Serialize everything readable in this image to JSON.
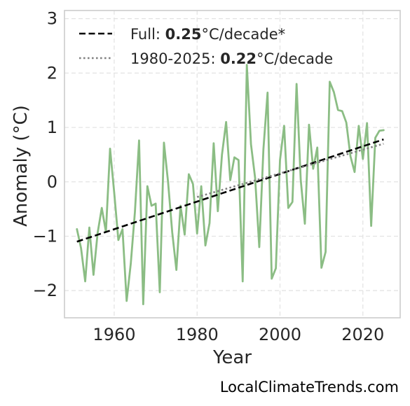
{
  "chart_data": {
    "type": "line",
    "title": "",
    "xlabel": "Year",
    "ylabel": "Anomaly (°C)",
    "xlim": [
      1948,
      2029
    ],
    "ylim": [
      -2.5,
      3.15
    ],
    "x_ticks": [
      1960,
      1980,
      2000,
      2020
    ],
    "y_ticks": [
      -2,
      -1,
      0,
      1,
      2,
      3
    ],
    "x_tick_labels": [
      "1960",
      "1980",
      "2000",
      "2020"
    ],
    "y_tick_labels": [
      "−2",
      "−1",
      "0",
      "1",
      "2",
      "3"
    ],
    "grid": true,
    "legend_position": "top-left",
    "legend": [
      {
        "prefix": "Full: ",
        "value": "0.25",
        "suffix": "°C/decade*",
        "style": "dashed",
        "color": "#000000"
      },
      {
        "prefix": "1980-2025: ",
        "value": "0.22",
        "suffix": "°C/decade",
        "style": "dotted",
        "color": "#808080"
      }
    ],
    "series": [
      {
        "color": "#8bbd84",
        "x": [
          1951,
          1952,
          1953,
          1954,
          1955,
          1956,
          1957,
          1958,
          1959,
          1960,
          1961,
          1962,
          1963,
          1964,
          1965,
          1966,
          1967,
          1968,
          1969,
          1970,
          1971,
          1972,
          1973,
          1974,
          1975,
          1976,
          1977,
          1978,
          1979,
          1980,
          1981,
          1982,
          1983,
          1984,
          1985,
          1986,
          1987,
          1988,
          1989,
          1990,
          1991,
          1992,
          1993,
          1994,
          1995,
          1996,
          1997,
          1998,
          1999,
          2000,
          2001,
          2002,
          2003,
          2004,
          2005,
          2006,
          2007,
          2008,
          2009,
          2010,
          2011,
          2012,
          2013,
          2014,
          2015,
          2016,
          2017,
          2018,
          2019,
          2020,
          2021,
          2022,
          2023,
          2024,
          2025
        ],
        "values": [
          -0.87,
          -1.22,
          -1.83,
          -0.84,
          -1.71,
          -0.94,
          -0.48,
          -0.92,
          0.61,
          -0.2,
          -1.07,
          -0.87,
          -2.19,
          -1.5,
          -0.55,
          0.76,
          -2.25,
          -0.08,
          -0.44,
          -0.4,
          -2.03,
          0.72,
          -0.01,
          -0.93,
          -1.62,
          -0.44,
          -0.97,
          0.14,
          -0.04,
          -0.95,
          -0.08,
          -1.17,
          -0.76,
          0.71,
          -0.54,
          0.5,
          1.1,
          0.03,
          0.45,
          0.4,
          -1.83,
          2.15,
          0.69,
          0.07,
          -1.2,
          0.6,
          1.64,
          -1.78,
          -1.59,
          0.4,
          1.03,
          -0.48,
          -0.37,
          1.8,
          0.04,
          -0.77,
          1.05,
          0.24,
          0.63,
          -1.58,
          -1.29,
          1.84,
          1.65,
          1.32,
          1.3,
          1.09,
          0.47,
          0.18,
          1.03,
          0.42,
          1.08,
          -0.81,
          0.81,
          0.94,
          0.95
        ]
      }
    ],
    "trend_lines": [
      {
        "style": "dashed",
        "color": "#000000",
        "x": [
          1951,
          2025
        ],
        "y": [
          -1.1,
          0.78
        ]
      },
      {
        "style": "dotted",
        "color": "#808080",
        "x": [
          1980,
          2025
        ],
        "y": [
          -0.28,
          0.7
        ]
      }
    ]
  },
  "watermark": "LocalClimateTrends.com"
}
